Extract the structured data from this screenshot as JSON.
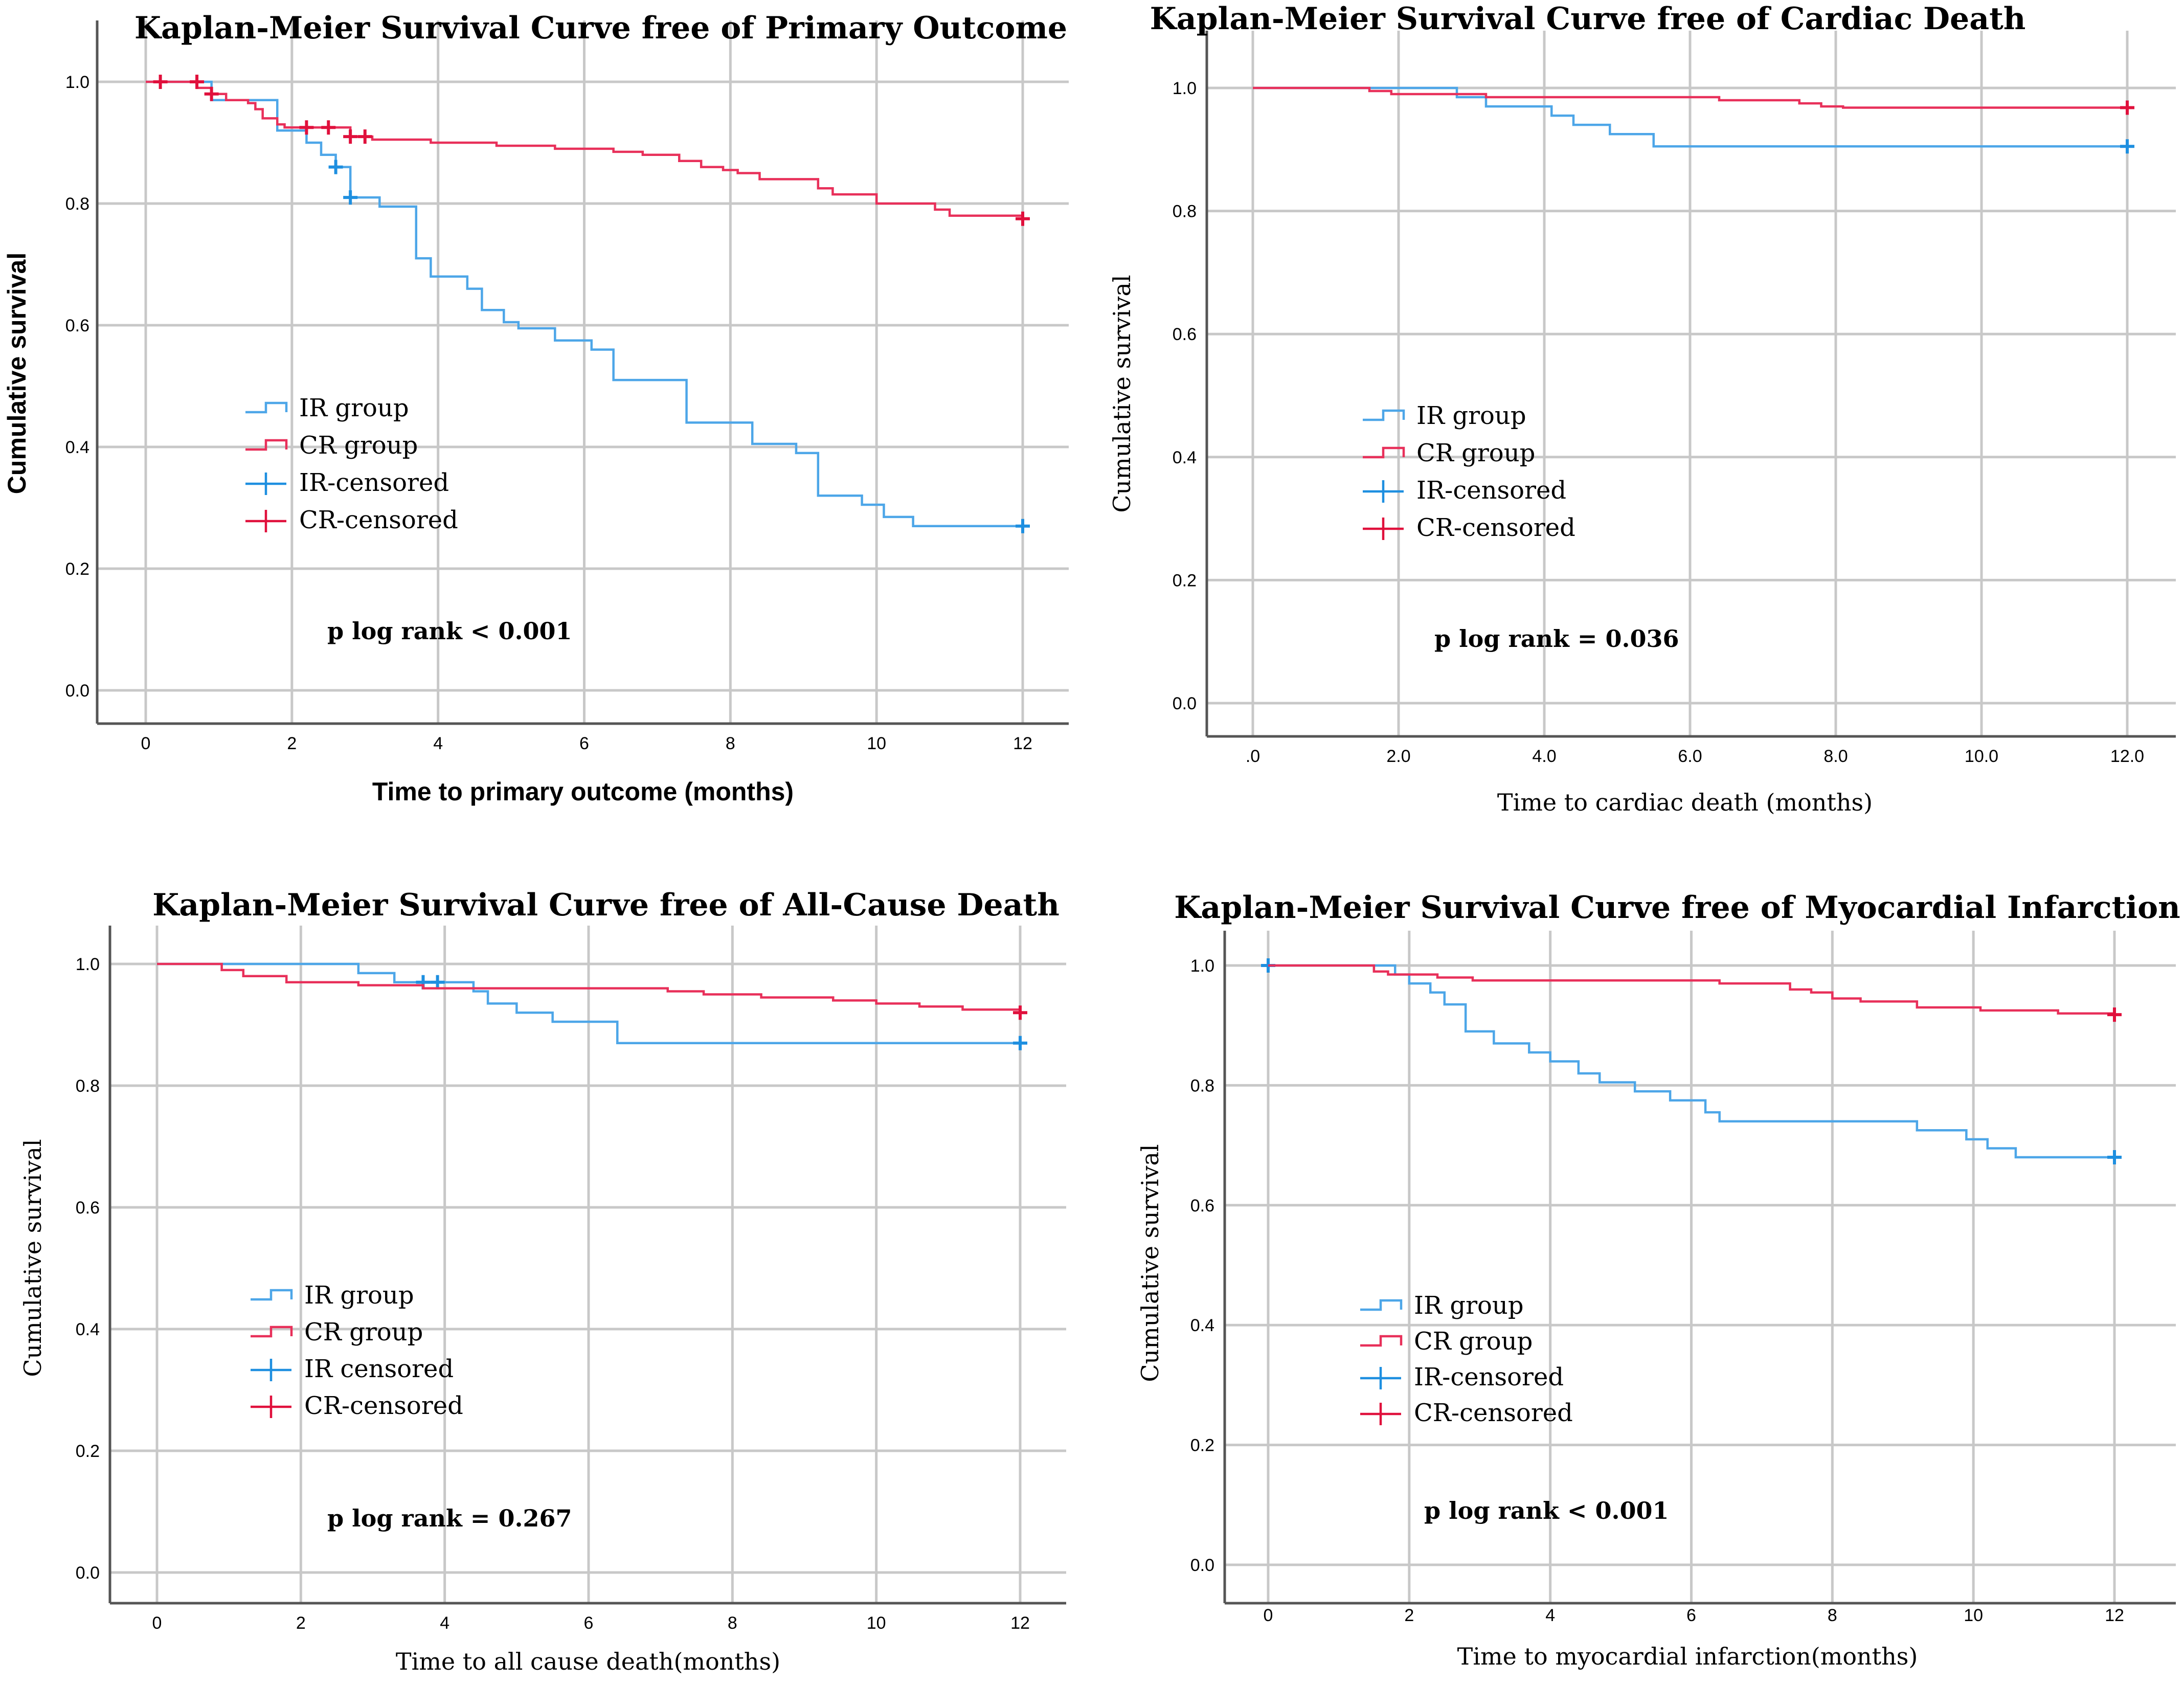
{
  "colors": {
    "ir": "#4da6e8",
    "cr": "#e8305a",
    "ir_censor": "#1e8fe0",
    "cr_censor": "#e0103c"
  },
  "chart_data": [
    {
      "type": "line",
      "title": "Kaplan-Meier Survival Curve free of Primary Outcome",
      "xlabel": "Time to primary outcome (months)",
      "ylabel": "Cumulative survival",
      "xlim": [
        0,
        12
      ],
      "ylim": [
        0,
        1
      ],
      "xticks": [
        "0",
        "2",
        "4",
        "6",
        "8",
        "10",
        "12"
      ],
      "yticks": [
        "0.0",
        "0.2",
        "0.4",
        "0.6",
        "0.8",
        "1.0"
      ],
      "grid": true,
      "legend_position": "center-left",
      "legend": [
        "IR group",
        "CR group",
        "IR-censored",
        "CR-censored"
      ],
      "annotation": "p log rank < 0.001",
      "series": [
        {
          "name": "IR group",
          "color": "ir",
          "steps": [
            [
              0,
              1.0
            ],
            [
              0.9,
              0.97
            ],
            [
              1.8,
              0.92
            ],
            [
              2.2,
              0.9
            ],
            [
              2.4,
              0.88
            ],
            [
              2.6,
              0.86
            ],
            [
              2.8,
              0.81
            ],
            [
              3.2,
              0.795
            ],
            [
              3.7,
              0.71
            ],
            [
              3.9,
              0.68
            ],
            [
              4.4,
              0.66
            ],
            [
              4.6,
              0.625
            ],
            [
              4.9,
              0.605
            ],
            [
              5.1,
              0.595
            ],
            [
              5.6,
              0.575
            ],
            [
              6.1,
              0.56
            ],
            [
              6.4,
              0.51
            ],
            [
              7.4,
              0.44
            ],
            [
              8.3,
              0.405
            ],
            [
              8.9,
              0.39
            ],
            [
              9.2,
              0.32
            ],
            [
              9.8,
              0.305
            ],
            [
              10.1,
              0.285
            ],
            [
              10.5,
              0.27
            ],
            [
              12,
              0.27
            ]
          ],
          "censored": [
            [
              2.6,
              0.86
            ],
            [
              2.8,
              0.81
            ],
            [
              12,
              0.27
            ]
          ]
        },
        {
          "name": "CR group",
          "color": "cr",
          "steps": [
            [
              0,
              1.0
            ],
            [
              0.7,
              0.99
            ],
            [
              0.9,
              0.98
            ],
            [
              1.1,
              0.97
            ],
            [
              1.4,
              0.965
            ],
            [
              1.5,
              0.955
            ],
            [
              1.6,
              0.94
            ],
            [
              1.8,
              0.93
            ],
            [
              1.9,
              0.925
            ],
            [
              2.8,
              0.91
            ],
            [
              3.1,
              0.905
            ],
            [
              3.9,
              0.9
            ],
            [
              4.8,
              0.895
            ],
            [
              5.6,
              0.89
            ],
            [
              6.4,
              0.885
            ],
            [
              6.8,
              0.88
            ],
            [
              7.3,
              0.87
            ],
            [
              7.6,
              0.86
            ],
            [
              7.9,
              0.855
            ],
            [
              8.1,
              0.85
            ],
            [
              8.4,
              0.84
            ],
            [
              9.2,
              0.825
            ],
            [
              9.4,
              0.815
            ],
            [
              10.0,
              0.8
            ],
            [
              10.8,
              0.79
            ],
            [
              11.0,
              0.78
            ],
            [
              12,
              0.775
            ]
          ],
          "censored": [
            [
              0.2,
              1.0
            ],
            [
              0.7,
              1.0
            ],
            [
              0.9,
              0.98
            ],
            [
              2.2,
              0.925
            ],
            [
              2.5,
              0.925
            ],
            [
              2.8,
              0.91
            ],
            [
              3.0,
              0.91
            ],
            [
              12,
              0.775
            ]
          ]
        }
      ]
    },
    {
      "type": "line",
      "title": "Kaplan-Meier Survival Curve free of Cardiac Death",
      "xlabel": "Time to cardiac death (months)",
      "ylabel": "Cumulative survival",
      "xlim": [
        0,
        12
      ],
      "ylim": [
        0,
        1
      ],
      "xticks": [
        ".0",
        "2.0",
        "4.0",
        "6.0",
        "8.0",
        "10.0",
        "12.0"
      ],
      "yticks": [
        "0.0",
        "0.2",
        "0.4",
        "0.6",
        "0.8",
        "1.0"
      ],
      "grid": true,
      "legend_position": "center-left",
      "legend": [
        "IR group",
        "CR group",
        "IR-censored",
        "CR-censored"
      ],
      "annotation": "p log rank = 0.036",
      "series": [
        {
          "name": "IR group",
          "color": "ir",
          "steps": [
            [
              0,
              1.0
            ],
            [
              2.8,
              0.985
            ],
            [
              3.2,
              0.97
            ],
            [
              4.1,
              0.955
            ],
            [
              4.4,
              0.94
            ],
            [
              4.9,
              0.925
            ],
            [
              5.5,
              0.905
            ],
            [
              12,
              0.905
            ]
          ],
          "censored": [
            [
              12,
              0.905
            ]
          ]
        },
        {
          "name": "CR group",
          "color": "cr",
          "steps": [
            [
              0,
              1.0
            ],
            [
              1.6,
              0.995
            ],
            [
              1.9,
              0.99
            ],
            [
              3.2,
              0.985
            ],
            [
              6.4,
              0.98
            ],
            [
              7.5,
              0.975
            ],
            [
              7.8,
              0.97
            ],
            [
              8.1,
              0.968
            ],
            [
              12,
              0.968
            ]
          ],
          "censored": [
            [
              12,
              0.968
            ]
          ]
        }
      ]
    },
    {
      "type": "line",
      "title": "Kaplan-Meier Survival Curve free of All-Cause Death",
      "xlabel": "Time to all cause death(months)",
      "ylabel": "Cumulative survival",
      "xlim": [
        0,
        12
      ],
      "ylim": [
        0,
        1
      ],
      "xticks": [
        "0",
        "2",
        "4",
        "6",
        "8",
        "10",
        "12"
      ],
      "yticks": [
        "0.0",
        "0.2",
        "0.4",
        "0.6",
        "0.8",
        "1.0"
      ],
      "grid": true,
      "legend_position": "center-left",
      "legend": [
        "IR group",
        "CR group",
        "IR censored",
        "CR-censored"
      ],
      "annotation": "p log rank = 0.267",
      "series": [
        {
          "name": "IR group",
          "color": "ir",
          "steps": [
            [
              0,
              1.0
            ],
            [
              2.8,
              0.985
            ],
            [
              3.3,
              0.97
            ],
            [
              4.4,
              0.955
            ],
            [
              4.6,
              0.935
            ],
            [
              5.0,
              0.92
            ],
            [
              5.5,
              0.905
            ],
            [
              6.4,
              0.87
            ],
            [
              12,
              0.87
            ]
          ],
          "censored": [
            [
              3.7,
              0.97
            ],
            [
              3.9,
              0.97
            ],
            [
              12,
              0.87
            ]
          ]
        },
        {
          "name": "CR group",
          "color": "cr",
          "steps": [
            [
              0,
              1.0
            ],
            [
              0.9,
              0.99
            ],
            [
              1.2,
              0.98
            ],
            [
              1.8,
              0.97
            ],
            [
              2.8,
              0.965
            ],
            [
              3.7,
              0.96
            ],
            [
              7.1,
              0.955
            ],
            [
              7.6,
              0.95
            ],
            [
              8.4,
              0.945
            ],
            [
              9.4,
              0.94
            ],
            [
              10.0,
              0.935
            ],
            [
              10.6,
              0.93
            ],
            [
              11.2,
              0.925
            ],
            [
              12,
              0.92
            ]
          ],
          "censored": [
            [
              12,
              0.92
            ]
          ]
        }
      ]
    },
    {
      "type": "line",
      "title": "Kaplan-Meier Survival Curve free of Myocardial Infarction",
      "xlabel": "Time to myocardial infarction(months)",
      "ylabel": "Cumulative survival",
      "xlim": [
        0,
        12
      ],
      "ylim": [
        0,
        1
      ],
      "xticks": [
        "0",
        "2",
        "4",
        "6",
        "8",
        "10",
        "12"
      ],
      "yticks": [
        "0.0",
        "0.2",
        "0.4",
        "0.6",
        "0.8",
        "1.0"
      ],
      "grid": true,
      "legend_position": "center-left",
      "legend": [
        "IR group",
        "CR group",
        "IR-censored",
        "CR-censored"
      ],
      "annotation": "p log rank < 0.001",
      "series": [
        {
          "name": "IR group",
          "color": "ir",
          "steps": [
            [
              0,
              1.0
            ],
            [
              1.8,
              0.985
            ],
            [
              2.0,
              0.97
            ],
            [
              2.3,
              0.955
            ],
            [
              2.5,
              0.935
            ],
            [
              2.8,
              0.89
            ],
            [
              3.2,
              0.87
            ],
            [
              3.7,
              0.855
            ],
            [
              4.0,
              0.84
            ],
            [
              4.4,
              0.82
            ],
            [
              4.7,
              0.805
            ],
            [
              5.2,
              0.79
            ],
            [
              5.7,
              0.775
            ],
            [
              6.2,
              0.755
            ],
            [
              6.4,
              0.74
            ],
            [
              9.2,
              0.725
            ],
            [
              9.9,
              0.71
            ],
            [
              10.2,
              0.695
            ],
            [
              10.6,
              0.68
            ],
            [
              12,
              0.68
            ]
          ],
          "censored": [
            [
              0,
              1.0
            ],
            [
              12,
              0.68
            ]
          ]
        },
        {
          "name": "CR group",
          "color": "cr",
          "steps": [
            [
              0,
              1.0
            ],
            [
              1.5,
              0.99
            ],
            [
              1.7,
              0.985
            ],
            [
              2.4,
              0.98
            ],
            [
              2.9,
              0.975
            ],
            [
              6.4,
              0.97
            ],
            [
              7.4,
              0.96
            ],
            [
              7.7,
              0.955
            ],
            [
              8.0,
              0.945
            ],
            [
              8.4,
              0.94
            ],
            [
              9.2,
              0.93
            ],
            [
              10.1,
              0.925
            ],
            [
              11.2,
              0.92
            ],
            [
              12,
              0.918
            ]
          ],
          "censored": [
            [
              12,
              0.918
            ]
          ]
        }
      ]
    }
  ]
}
